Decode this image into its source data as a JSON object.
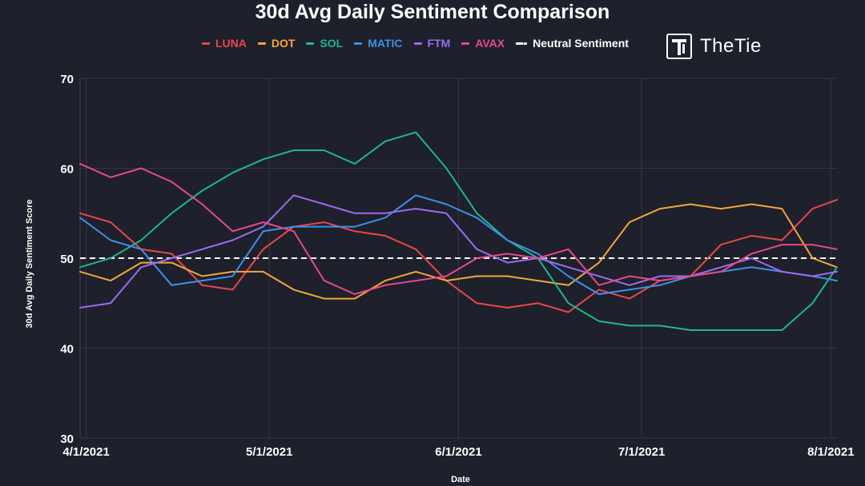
{
  "chart_data": {
    "type": "line",
    "title": "30d Avg Daily Sentiment Comparison",
    "xlabel": "Date",
    "ylabel": "30d Avg Daily Sentiment Score",
    "ylim": [
      30,
      70
    ],
    "yticks": [
      30,
      40,
      50,
      60,
      70
    ],
    "xlim": [
      "2021-03-31",
      "2021-08-02"
    ],
    "xticks": [
      {
        "date": "2021-04-01",
        "label": "4/1/2021"
      },
      {
        "date": "2021-05-01",
        "label": "5/1/2021"
      },
      {
        "date": "2021-06-01",
        "label": "6/1/2021"
      },
      {
        "date": "2021-07-01",
        "label": "7/1/2021"
      },
      {
        "date": "2021-08-01",
        "label": "8/1/2021"
      }
    ],
    "grid": true,
    "legend_position": "top",
    "reference_line": {
      "name": "Neutral Sentiment",
      "value": 50,
      "color": "#ffffff",
      "style": "dashed"
    },
    "x": [
      "2021-03-31",
      "2021-04-05",
      "2021-04-10",
      "2021-04-15",
      "2021-04-20",
      "2021-04-25",
      "2021-04-30",
      "2021-05-05",
      "2021-05-10",
      "2021-05-15",
      "2021-05-20",
      "2021-05-25",
      "2021-05-30",
      "2021-06-04",
      "2021-06-09",
      "2021-06-14",
      "2021-06-19",
      "2021-06-24",
      "2021-06-29",
      "2021-07-04",
      "2021-07-09",
      "2021-07-14",
      "2021-07-19",
      "2021-07-24",
      "2021-07-29",
      "2021-08-02"
    ],
    "series": [
      {
        "name": "LUNA",
        "color": "#e8474c",
        "values": [
          55.0,
          54.0,
          51.0,
          50.5,
          47.0,
          46.5,
          51.0,
          53.5,
          54.0,
          53.0,
          52.5,
          51.0,
          47.5,
          45.0,
          44.5,
          45.0,
          44.0,
          46.5,
          45.5,
          47.5,
          48.0,
          51.5,
          52.5,
          52.0,
          55.5,
          56.5
        ]
      },
      {
        "name": "DOT",
        "color": "#f2a73b",
        "values": [
          48.5,
          47.5,
          49.5,
          49.5,
          48.0,
          48.5,
          48.5,
          46.5,
          45.5,
          45.5,
          47.5,
          48.5,
          47.5,
          48.0,
          48.0,
          47.5,
          47.0,
          49.5,
          54.0,
          55.5,
          56.0,
          55.5,
          56.0,
          55.5,
          50.0,
          49.0
        ]
      },
      {
        "name": "SOL",
        "color": "#1db88e",
        "values": [
          49.0,
          50.0,
          52.0,
          55.0,
          57.5,
          59.5,
          61.0,
          62.0,
          62.0,
          60.5,
          63.0,
          64.0,
          60.0,
          55.0,
          52.0,
          50.0,
          45.0,
          43.0,
          42.5,
          42.5,
          42.0,
          42.0,
          42.0,
          42.0,
          45.0,
          49.0
        ]
      },
      {
        "name": "MATIC",
        "color": "#3f8fe8",
        "values": [
          54.5,
          52.0,
          51.0,
          47.0,
          47.5,
          48.0,
          53.0,
          53.5,
          53.5,
          53.5,
          54.5,
          57.0,
          56.0,
          54.5,
          52.0,
          50.5,
          48.0,
          46.0,
          46.5,
          47.0,
          48.0,
          48.5,
          49.0,
          48.5,
          48.0,
          47.5
        ]
      },
      {
        "name": "FTM",
        "color": "#9b6bf0",
        "values": [
          44.5,
          45.0,
          49.0,
          50.0,
          51.0,
          52.0,
          53.5,
          57.0,
          56.0,
          55.0,
          55.0,
          55.5,
          55.0,
          51.0,
          49.5,
          50.0,
          49.0,
          48.0,
          47.0,
          48.0,
          48.0,
          49.0,
          50.0,
          48.5,
          48.0,
          48.5
        ]
      },
      {
        "name": "AVAX",
        "color": "#e54a8a",
        "values": [
          60.5,
          59.0,
          60.0,
          58.5,
          56.0,
          53.0,
          54.0,
          53.0,
          47.5,
          46.0,
          47.0,
          47.5,
          48.0,
          50.0,
          50.5,
          50.0,
          51.0,
          47.0,
          48.0,
          47.5,
          48.0,
          48.5,
          50.5,
          51.5,
          51.5,
          51.0
        ]
      }
    ]
  }
}
